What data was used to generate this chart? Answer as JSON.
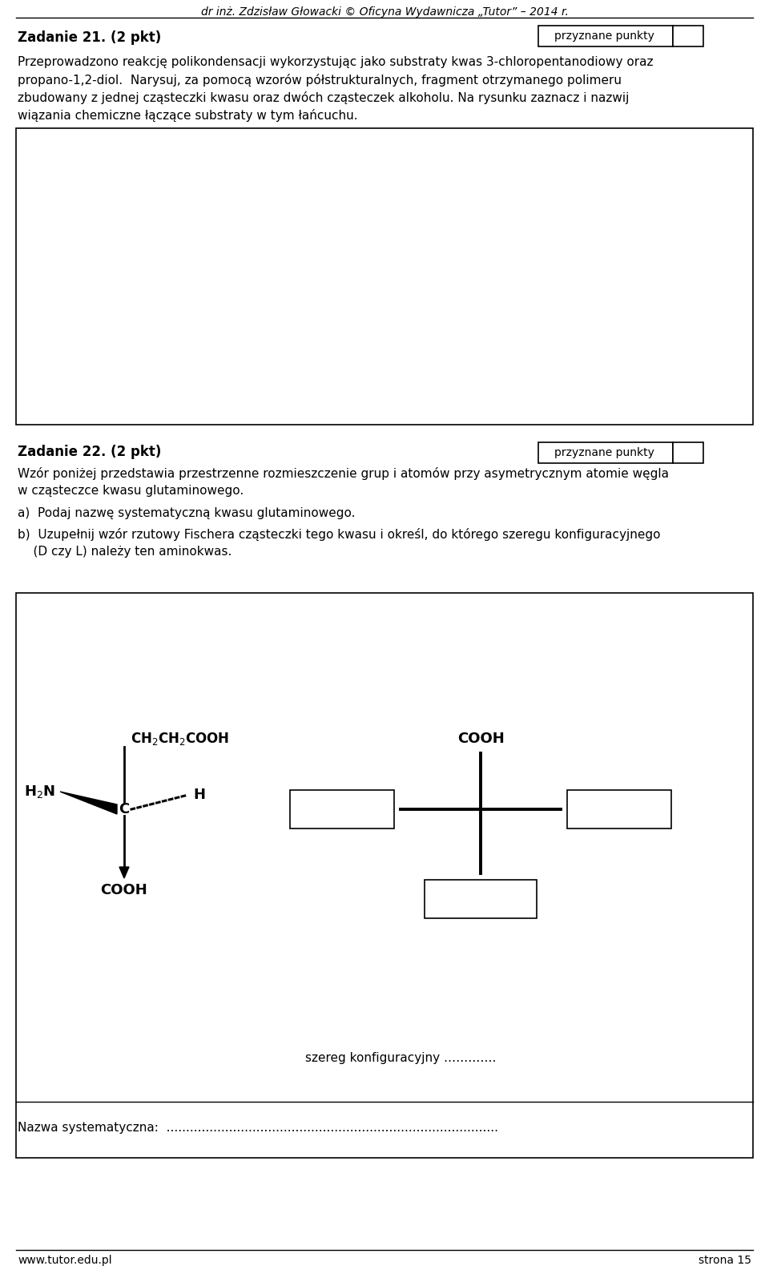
{
  "title_header": "dr inz. Zdzislaw Glowacki - Oficyna Wydawnicza Tutor - 2014 r.",
  "footer_left": "www.tutor.edu.pl",
  "footer_right": "strona 15",
  "zadanie21_title": "Zadanie 21. (2 pkt)",
  "zadanie21_points_label": "przyznane punkty",
  "zadanie22_title": "Zadanie 22. (2 pkt)",
  "zadanie22_points_label": "przyznane punkty",
  "szereg_text": "szereg konfiguracyjny ..........",
  "nazwa_label": "Nazwa systematyczna:",
  "bg_color": "#ffffff",
  "text_color": "#000000"
}
